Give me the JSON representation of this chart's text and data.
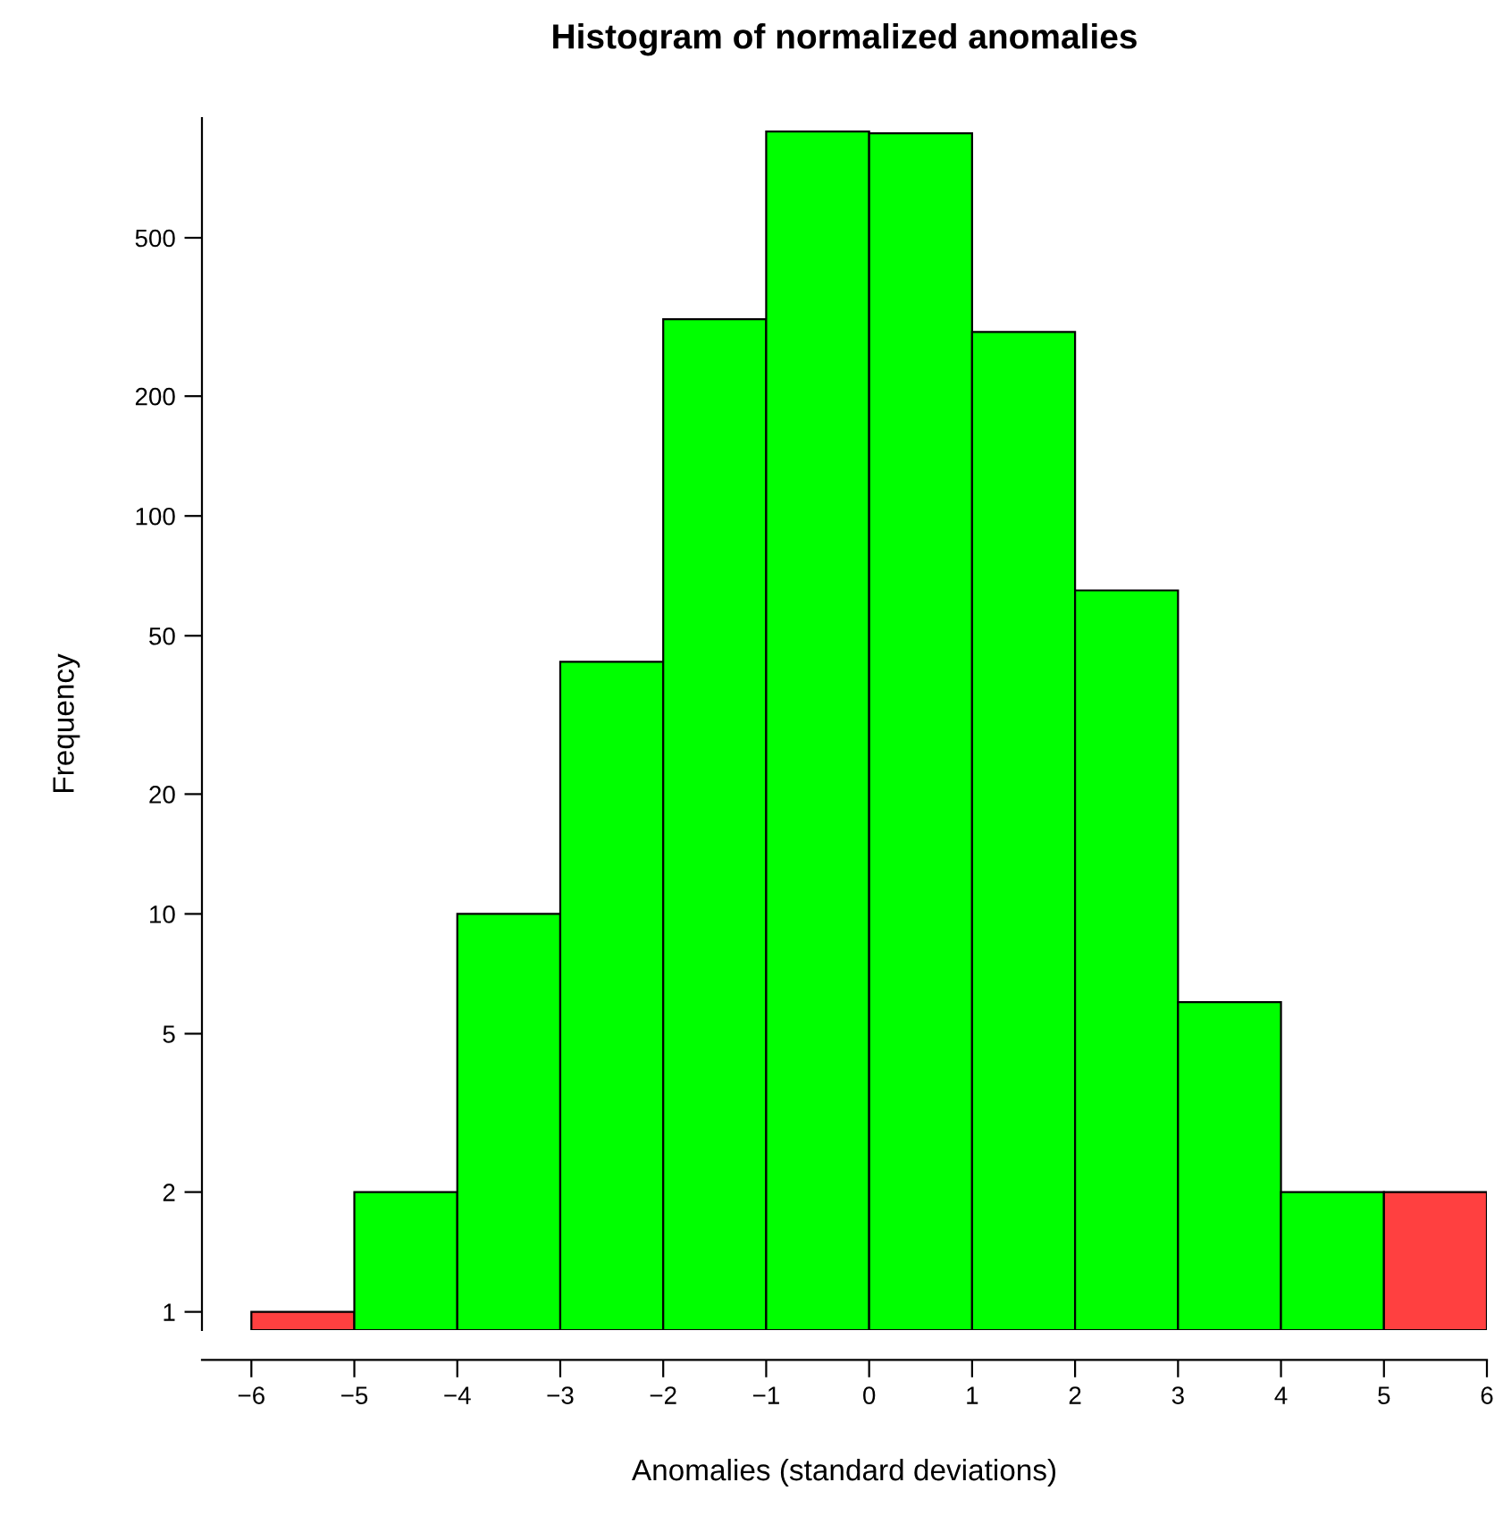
{
  "chart_data": {
    "type": "histogram",
    "title": "Histogram of normalized anomalies",
    "xlabel": "Anomalies (standard deviations)",
    "ylabel": "Frequency",
    "bins": [
      -6,
      -5,
      -4,
      -3,
      -2,
      -1,
      0,
      1,
      2,
      3,
      4,
      5,
      6
    ],
    "values": [
      1,
      2,
      10,
      43,
      312,
      925,
      915,
      290,
      65,
      6,
      2,
      2
    ],
    "colors": [
      "#ff4040",
      "#00ff00",
      "#00ff00",
      "#00ff00",
      "#00ff00",
      "#00ff00",
      "#00ff00",
      "#00ff00",
      "#00ff00",
      "#00ff00",
      "#00ff00",
      "#ff4040"
    ],
    "log": "y",
    "xlim": [
      -6.48,
      6
    ],
    "ylim": [
      0.9,
      1000
    ],
    "xticks": [
      {
        "value": -6,
        "label": "−6"
      },
      {
        "value": -5,
        "label": "−5"
      },
      {
        "value": -4,
        "label": "−4"
      },
      {
        "value": -3,
        "label": "−3"
      },
      {
        "value": -2,
        "label": "−2"
      },
      {
        "value": -1,
        "label": "−1"
      },
      0,
      1,
      2,
      3,
      4,
      5,
      6
    ],
    "yticks": [
      1,
      2,
      5,
      10,
      20,
      50,
      100,
      200,
      500
    ],
    "grid": false
  }
}
